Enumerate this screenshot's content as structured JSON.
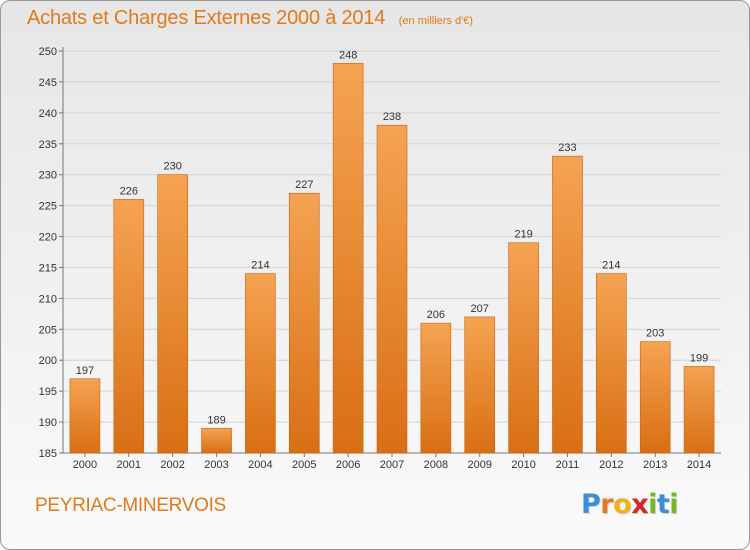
{
  "title": "Achats et Charges Externes 2000 à 2014",
  "subtitle": "(en milliers d'€)",
  "commune": "PEYRIAC-MINERVOIS",
  "logo": {
    "letters": [
      "P",
      "r",
      "o",
      "x",
      "i",
      "t",
      "i"
    ],
    "colors": [
      "#3a8fd6",
      "#e6791c",
      "#f0b21a",
      "#d2262c",
      "#79b52a",
      "#3a8fd6",
      "#79b52a"
    ]
  },
  "colors": {
    "bar_top": "#f5a352",
    "bar_bottom": "#d86f14",
    "bar_edge": "#c8620f",
    "grid": "#d3d3d3",
    "title": "#e07a1a"
  },
  "chart_data": {
    "type": "bar",
    "title": "Achats et Charges Externes 2000 à 2014",
    "subtitle": "(en milliers d'€)",
    "categories": [
      "2000",
      "2001",
      "2002",
      "2003",
      "2004",
      "2005",
      "2006",
      "2007",
      "2008",
      "2009",
      "2010",
      "2011",
      "2012",
      "2013",
      "2014"
    ],
    "values": [
      197,
      226,
      230,
      189,
      214,
      227,
      248,
      238,
      206,
      207,
      219,
      233,
      214,
      203,
      199
    ],
    "ylim": [
      185,
      250
    ],
    "yticks": [
      185,
      190,
      195,
      200,
      205,
      210,
      215,
      220,
      225,
      230,
      235,
      240,
      245,
      250
    ],
    "grid": true,
    "xlabel": "",
    "ylabel": ""
  }
}
